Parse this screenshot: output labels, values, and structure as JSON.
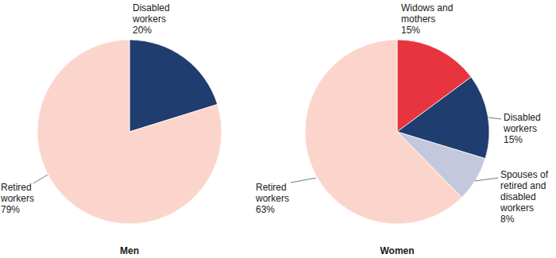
{
  "chart_data": [
    {
      "type": "pie",
      "title": "Men",
      "categories": [
        "Disabled workers",
        "Retired workers"
      ],
      "values": [
        20,
        79
      ],
      "value_labels": [
        "20%",
        "79%"
      ],
      "colors": [
        "#1f3d6e",
        "#fbd5cc"
      ],
      "data_labels": true
    },
    {
      "type": "pie",
      "title": "Women",
      "categories": [
        "Widows and mothers",
        "Disabled workers",
        "Spouses of retired and disabled workers",
        "Retired workers"
      ],
      "values": [
        15,
        15,
        8,
        63
      ],
      "value_labels": [
        "15%",
        "15%",
        "8%",
        "63%"
      ],
      "colors": [
        "#e8343f",
        "#1f3d6e",
        "#c3c8dc",
        "#fbd5cc"
      ],
      "data_labels": true
    }
  ]
}
